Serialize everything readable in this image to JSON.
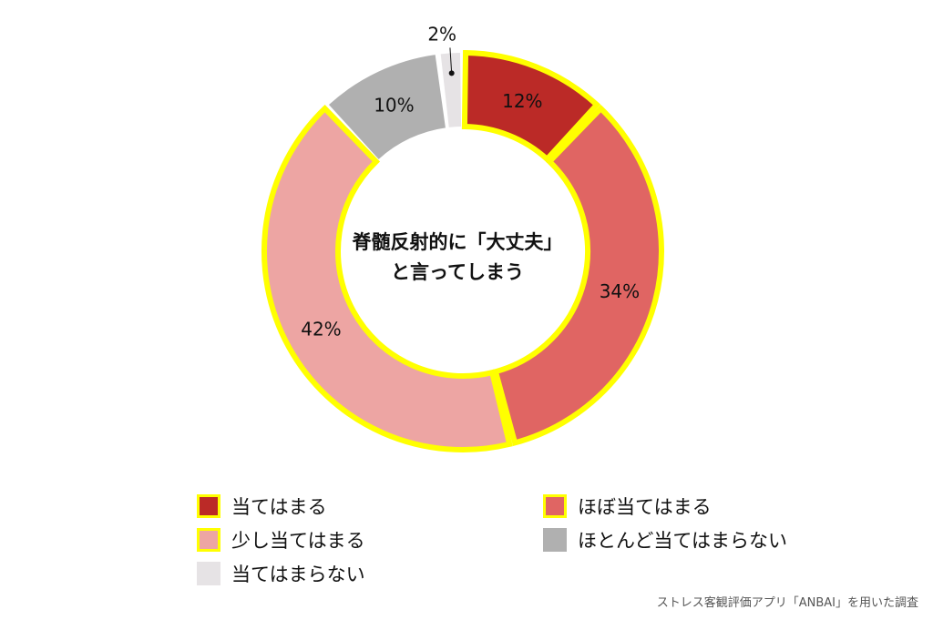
{
  "chart_data": {
    "type": "pie",
    "title": "脊髄反射的に「大丈夫」と言ってしまう",
    "title_lines": [
      "脊髄反射的に「大丈夫」",
      "と言ってしまう"
    ],
    "categories": [
      "当てはまる",
      "ほぼ当てはまる",
      "少し当てはまる",
      "ほとんど当てはまらない",
      "当てはまらない"
    ],
    "values": [
      12,
      34,
      42,
      10,
      2
    ],
    "value_labels": [
      "12%",
      "34%",
      "42%",
      "10%",
      "2%"
    ],
    "colors": [
      "#bb2a27",
      "#e06563",
      "#eda5a3",
      "#b0b0b0",
      "#e6e3e5"
    ],
    "highlight_color": "#ffff00",
    "highlighted": [
      true,
      true,
      true,
      false,
      false
    ],
    "legend_placement": "bottom",
    "style": "donut"
  },
  "source_note": "ストレス客観評価アプリ「ANBAI」を用いた調査"
}
